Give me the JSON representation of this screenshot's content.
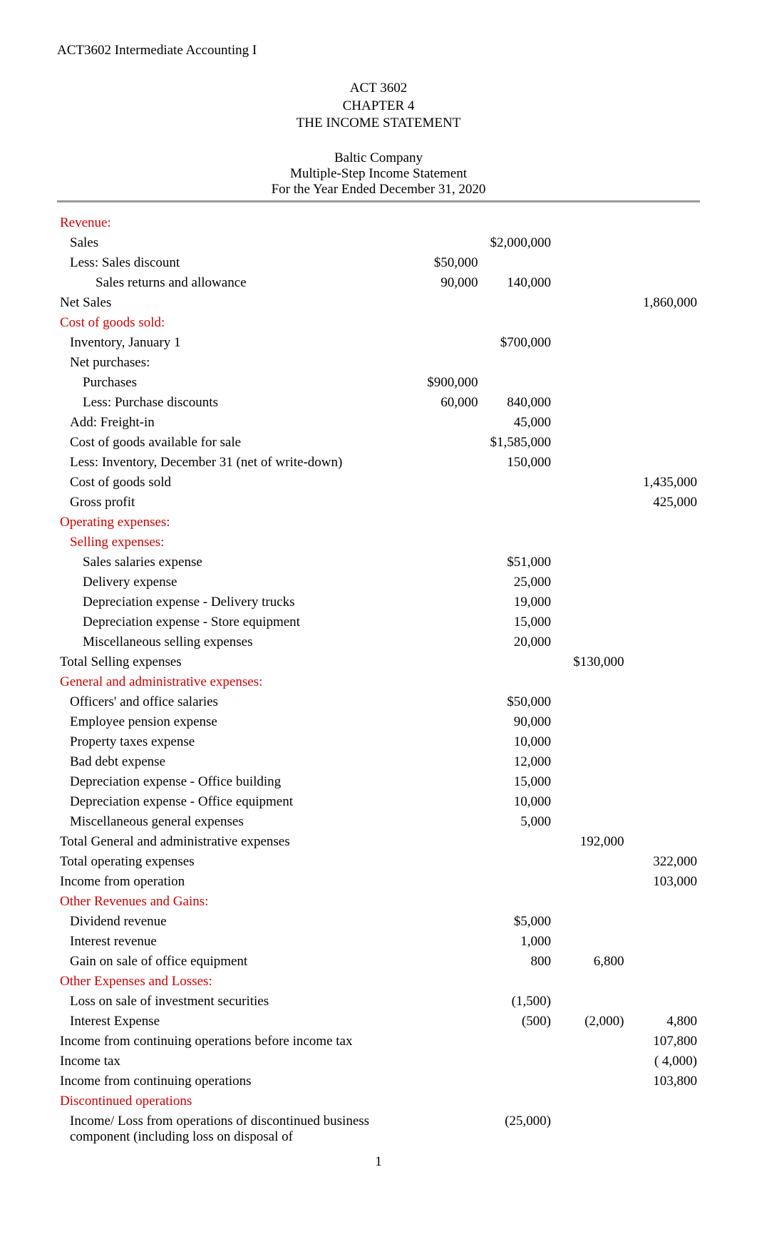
{
  "course_header": "ACT3602 Intermediate Accounting I",
  "title": {
    "line1": "ACT 3602",
    "line2": "CHAPTER 4",
    "line3": "THE INCOME STATEMENT"
  },
  "statement_header": {
    "company": "Baltic Company",
    "type": "Multiple-Step Income Statement",
    "period": "For the Year Ended December 31, 2020"
  },
  "colors": {
    "section_header": "#cc0000",
    "body_text": "#000000",
    "underline": "#999999",
    "background": "#ffffff"
  },
  "rows": [
    {
      "label": "Revenue:",
      "indent": 0,
      "style": "section",
      "c1": "",
      "c2": "",
      "c3": "",
      "c4": ""
    },
    {
      "label": "Sales",
      "indent": 1,
      "style": "normal",
      "c1": "",
      "c2": "$2,000,000",
      "c3": "",
      "c4": ""
    },
    {
      "label": "Less: Sales discount",
      "indent": 1,
      "style": "normal",
      "c1": "$50,000",
      "c2": "",
      "c3": "",
      "c4": ""
    },
    {
      "label": "Sales returns and allowance",
      "indent": 3,
      "style": "normal",
      "c1": "90,000",
      "c2": "140,000",
      "c3": "",
      "c4": ""
    },
    {
      "label": "Net Sales",
      "indent": 0,
      "style": "normal",
      "c1": "",
      "c2": "",
      "c3": "",
      "c4": "1,860,000"
    },
    {
      "label": "Cost of goods sold:",
      "indent": 0,
      "style": "section",
      "c1": "",
      "c2": "",
      "c3": "",
      "c4": ""
    },
    {
      "label": "Inventory, January 1",
      "indent": 1,
      "style": "normal",
      "c1": "",
      "c2": "$700,000",
      "c3": "",
      "c4": ""
    },
    {
      "label": "Net purchases:",
      "indent": 1,
      "style": "normal",
      "c1": "",
      "c2": "",
      "c3": "",
      "c4": ""
    },
    {
      "label": "Purchases",
      "indent": 2,
      "style": "normal",
      "c1": "$900,000",
      "c2": "",
      "c3": "",
      "c4": ""
    },
    {
      "label": "Less: Purchase discounts",
      "indent": 2,
      "style": "normal",
      "c1": "60,000",
      "c2": "840,000",
      "c3": "",
      "c4": ""
    },
    {
      "label": "Add: Freight-in",
      "indent": 1,
      "style": "normal",
      "c1": "",
      "c2": "45,000",
      "c3": "",
      "c4": ""
    },
    {
      "label": "Cost of goods available for sale",
      "indent": 1,
      "style": "normal",
      "c1": "",
      "c2": "$1,585,000",
      "c3": "",
      "c4": ""
    },
    {
      "label": "Less: Inventory, December 31 (net of write-down)",
      "indent": 1,
      "style": "normal",
      "c1": "",
      "c2": "150,000",
      "c3": "",
      "c4": ""
    },
    {
      "label": "Cost of goods sold",
      "indent": 1,
      "style": "normal",
      "c1": "",
      "c2": "",
      "c3": "",
      "c4": "1,435,000"
    },
    {
      "label": "Gross profit",
      "indent": 1,
      "style": "normal",
      "c1": "",
      "c2": "",
      "c3": "",
      "c4": "425,000"
    },
    {
      "label": "Operating expenses:",
      "indent": 0,
      "style": "section",
      "c1": "",
      "c2": "",
      "c3": "",
      "c4": ""
    },
    {
      "label": "Selling expenses:",
      "indent": 1,
      "style": "section",
      "c1": "",
      "c2": "",
      "c3": "",
      "c4": ""
    },
    {
      "label": "Sales salaries expense",
      "indent": 2,
      "style": "normal",
      "c1": "",
      "c2": "$51,000",
      "c3": "",
      "c4": ""
    },
    {
      "label": "Delivery expense",
      "indent": 2,
      "style": "normal",
      "c1": "",
      "c2": "25,000",
      "c3": "",
      "c4": ""
    },
    {
      "label": "Depreciation expense - Delivery trucks",
      "indent": 2,
      "style": "normal",
      "c1": "",
      "c2": "19,000",
      "c3": "",
      "c4": ""
    },
    {
      "label": "Depreciation expense - Store equipment",
      "indent": 2,
      "style": "normal",
      "c1": "",
      "c2": "15,000",
      "c3": "",
      "c4": ""
    },
    {
      "label": "Miscellaneous selling expenses",
      "indent": 2,
      "style": "normal",
      "c1": "",
      "c2": "20,000",
      "c3": "",
      "c4": ""
    },
    {
      "label": "Total Selling expenses",
      "indent": 0,
      "style": "normal",
      "c1": "",
      "c2": "",
      "c3": "$130,000",
      "c4": ""
    },
    {
      "label": "General and administrative expenses:",
      "indent": 0,
      "style": "section",
      "c1": "",
      "c2": "",
      "c3": "",
      "c4": ""
    },
    {
      "label": "Officers' and office salaries",
      "indent": 1,
      "style": "normal",
      "c1": "",
      "c2": "$50,000",
      "c3": "",
      "c4": ""
    },
    {
      "label": "Employee pension expense",
      "indent": 1,
      "style": "normal",
      "c1": "",
      "c2": "90,000",
      "c3": "",
      "c4": ""
    },
    {
      "label": "Property taxes expense",
      "indent": 1,
      "style": "normal",
      "c1": "",
      "c2": "10,000",
      "c3": "",
      "c4": ""
    },
    {
      "label": "Bad debt expense",
      "indent": 1,
      "style": "normal",
      "c1": "",
      "c2": "12,000",
      "c3": "",
      "c4": ""
    },
    {
      "label": "Depreciation expense - Office building",
      "indent": 1,
      "style": "normal",
      "c1": "",
      "c2": "15,000",
      "c3": "",
      "c4": ""
    },
    {
      "label": "Depreciation expense - Office equipment",
      "indent": 1,
      "style": "normal",
      "c1": "",
      "c2": "10,000",
      "c3": "",
      "c4": ""
    },
    {
      "label": "Miscellaneous general expenses",
      "indent": 1,
      "style": "normal",
      "c1": "",
      "c2": "5,000",
      "c3": "",
      "c4": ""
    },
    {
      "label": "Total General and administrative expenses",
      "indent": 0,
      "style": "normal",
      "c1": "",
      "c2": "",
      "c3": "192,000",
      "c4": ""
    },
    {
      "label": "Total operating expenses",
      "indent": 0,
      "style": "normal",
      "c1": "",
      "c2": "",
      "c3": "",
      "c4": "322,000"
    },
    {
      "label": "Income from operation",
      "indent": 0,
      "style": "normal",
      "c1": "",
      "c2": "",
      "c3": "",
      "c4": "103,000"
    },
    {
      "label": "Other Revenues and Gains:",
      "indent": 0,
      "style": "section",
      "c1": "",
      "c2": "",
      "c3": "",
      "c4": ""
    },
    {
      "label": "Dividend revenue",
      "indent": 1,
      "style": "normal",
      "c1": "",
      "c2": "$5,000",
      "c3": "",
      "c4": ""
    },
    {
      "label": "Interest revenue",
      "indent": 1,
      "style": "normal",
      "c1": "",
      "c2": "1,000",
      "c3": "",
      "c4": ""
    },
    {
      "label": "Gain on sale of office equipment",
      "indent": 1,
      "style": "normal",
      "c1": "",
      "c2": "800",
      "c3": "6,800",
      "c4": ""
    },
    {
      "label": "Other Expenses and Losses:",
      "indent": 0,
      "style": "section",
      "c1": "",
      "c2": "",
      "c3": "",
      "c4": ""
    },
    {
      "label": "Loss on sale of investment securities",
      "indent": 1,
      "style": "normal",
      "c1": "",
      "c2": "(1,500)",
      "c3": "",
      "c4": ""
    },
    {
      "label": "Interest Expense",
      "indent": 1,
      "style": "normal",
      "c1": "",
      "c2": "(500)",
      "c3": "(2,000)",
      "c4": "4,800"
    },
    {
      "label": "Income from continuing operations before income tax",
      "indent": 0,
      "style": "normal",
      "c1": "",
      "c2": "",
      "c3": "",
      "c4": "107,800"
    },
    {
      "label": "Income tax",
      "indent": 0,
      "style": "normal",
      "c1": "",
      "c2": "",
      "c3": "",
      "c4": "(  4,000)"
    },
    {
      "label": "Income from continuing operations",
      "indent": 0,
      "style": "normal",
      "c1": "",
      "c2": "",
      "c3": "",
      "c4": "103,800"
    },
    {
      "label": "Discontinued operations",
      "indent": 0,
      "style": "section",
      "c1": "",
      "c2": "",
      "c3": "",
      "c4": ""
    },
    {
      "label": "Income/ Loss from operations of discontinued business component (including loss on disposal of",
      "indent": 1,
      "style": "normal",
      "c1": "",
      "c2": "(25,000)",
      "c3": "",
      "c4": ""
    }
  ],
  "page_number": "1"
}
